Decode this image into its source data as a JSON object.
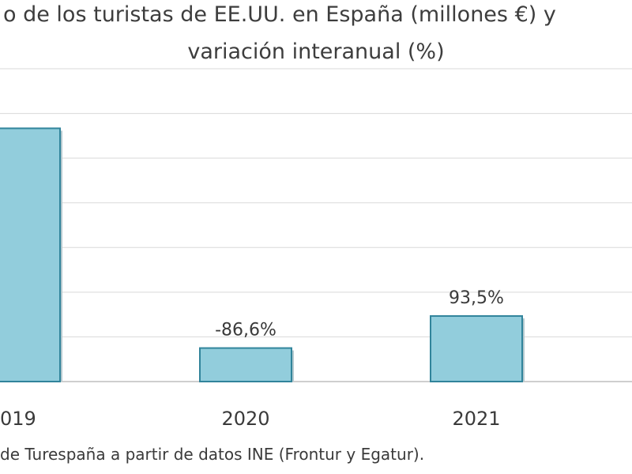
{
  "chart_data": {
    "type": "bar",
    "title": "o de los turistas de EE.UU. en España (millones €) y",
    "subtitle": "variación interanual (%)",
    "categories": [
      "019",
      "2020",
      "2021"
    ],
    "values": [
      3400,
      450,
      880
    ],
    "data_labels": [
      "",
      "-86,6%",
      "93,5%"
    ],
    "ylim": [
      0,
      4200
    ],
    "grid": true,
    "bar_color": "#92cddc",
    "bar_edge_color": "#31849b",
    "grid_color": "#d9d9d9"
  },
  "source": "de Turespaña a partir de datos INE (Frontur y Egatur)."
}
